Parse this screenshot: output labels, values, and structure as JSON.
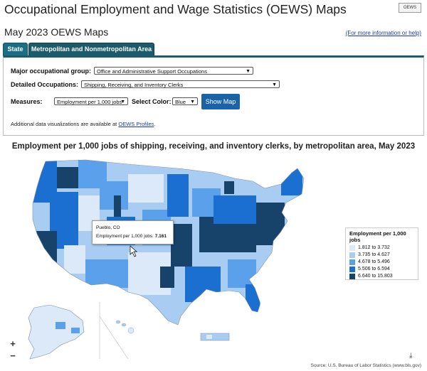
{
  "header": {
    "title": "Occupational Employment and Wage Statistics (OEWS) Maps",
    "logo_text": "OEWS",
    "subtitle": "May 2023 OEWS Maps",
    "more_info_link": "(For more information or help)"
  },
  "tabs": [
    {
      "label": "State"
    },
    {
      "label": "Metropolitan and Nonmetropolitan Area"
    }
  ],
  "form": {
    "major_group_label": "Major occupational group:",
    "major_group_value": "Office and Administrative Support Occupations",
    "detailed_label": "Detailed Occupations:",
    "detailed_value": "Shipping, Receiving, and Inventory Clerks",
    "measures_label": "Measures:",
    "measures_value": "Employment per 1,000 jobs",
    "color_label": "Select Color:",
    "color_value": "Blue",
    "show_map_label": "Show Map",
    "additional_text": "Additional data visualizations are available at",
    "additional_link": "OEWS Profiles",
    "additional_end": "."
  },
  "map": {
    "title": "Employment per 1,000 jobs of shipping, receiving, and inventory clerks, by metropolitan area, May 2023",
    "tooltip": {
      "area": "Pueblo, CO",
      "measure_label": "Employment per 1,000 jobs:",
      "measure_value": "7.161"
    },
    "legend": {
      "title": "Employment per 1,000 jobs",
      "items": [
        {
          "label": "1.812 to 3.732",
          "color": "#dbe9f8"
        },
        {
          "label": "3.735 to 4.627",
          "color": "#a9ccf2"
        },
        {
          "label": "4.678 to 5.496",
          "color": "#5aa0ea"
        },
        {
          "label": "5.506 to 6.594",
          "color": "#1a6fd0"
        },
        {
          "label": "6.640 to 15.803",
          "color": "#17436b"
        }
      ]
    },
    "zoom_in": "+",
    "zoom_out": "−",
    "download_icon": "download-icon",
    "source": "Source: U.S. Bureau of Labor Statistics (www.bls.gov)"
  }
}
